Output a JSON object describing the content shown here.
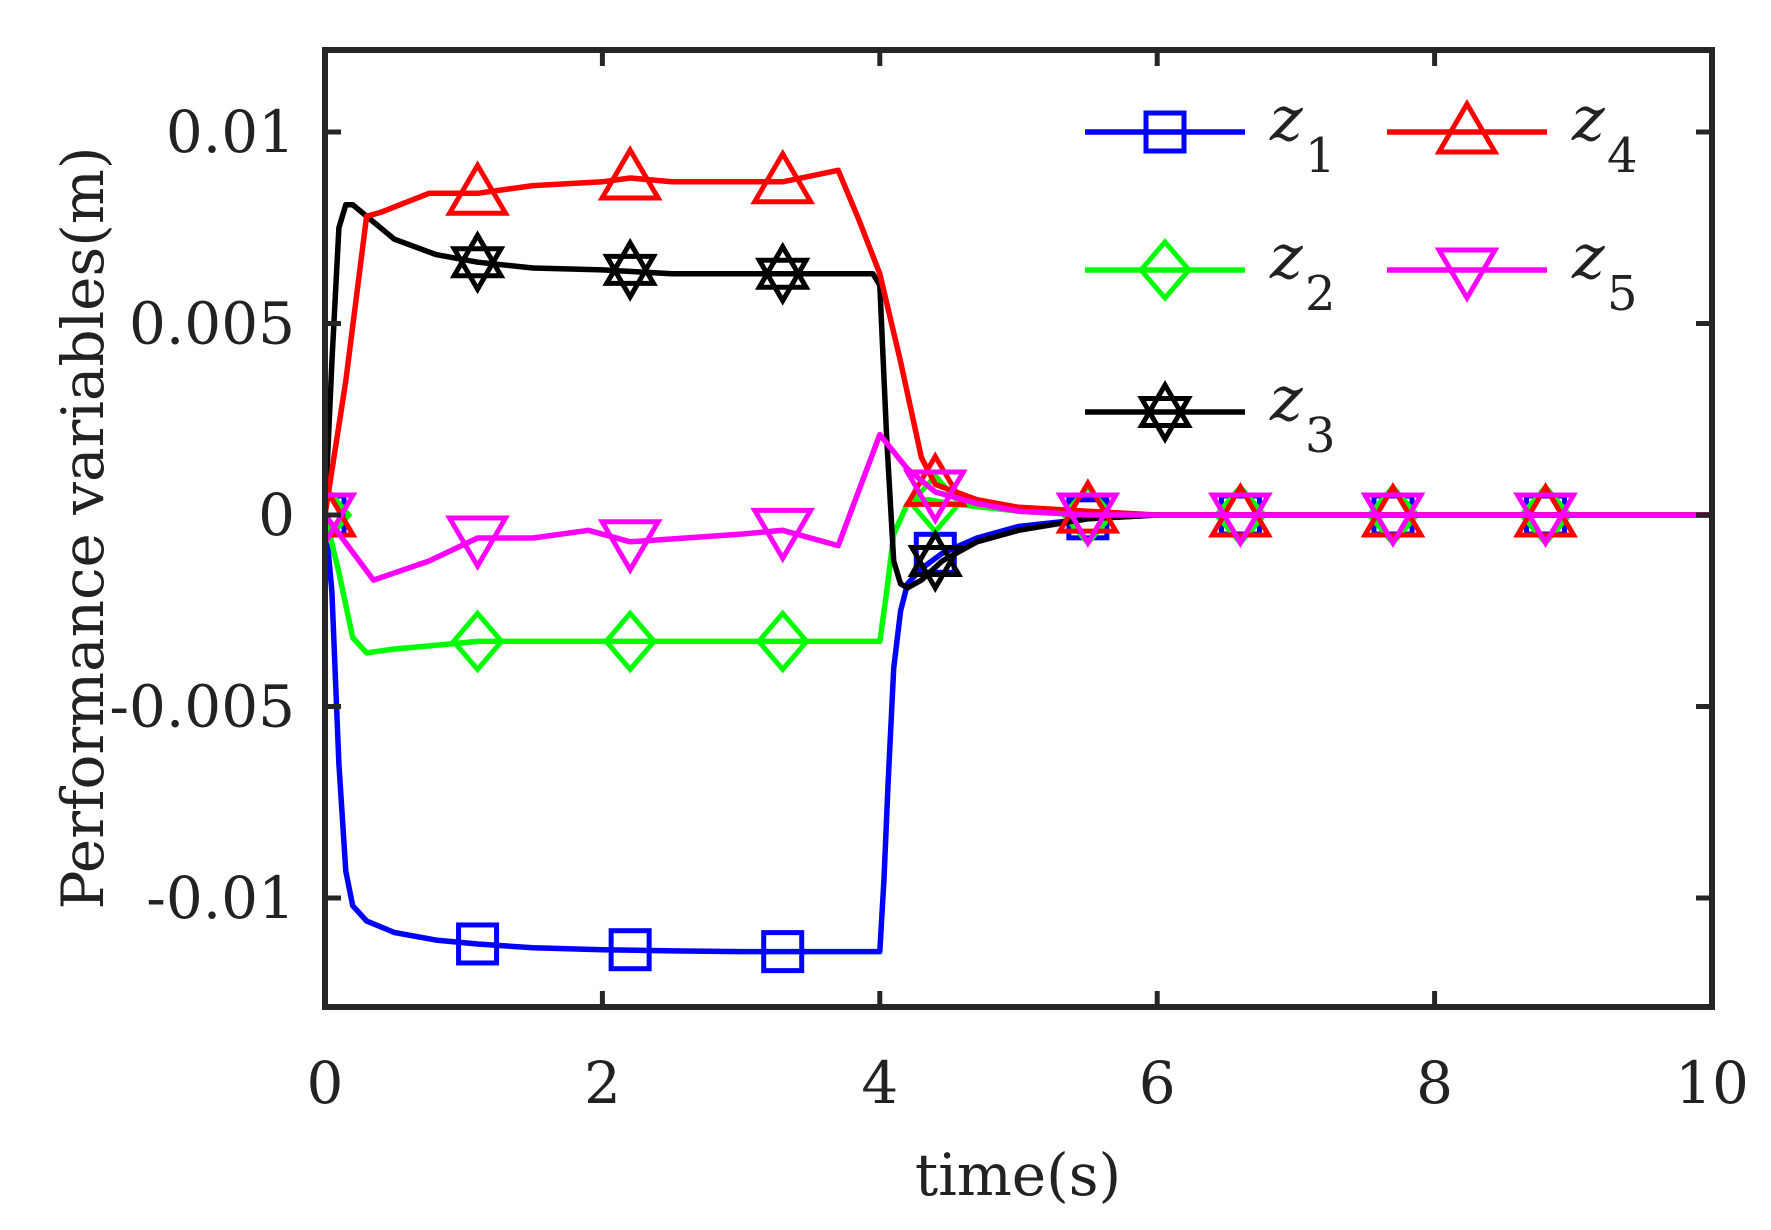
{
  "chart_data": {
    "type": "line",
    "title": "",
    "xlabel": "time(s)",
    "ylabel": "Performance variables(m)",
    "xlim": [
      0,
      10
    ],
    "ylim": [
      -0.013,
      0.012
    ],
    "xticks": [
      0,
      2,
      4,
      6,
      8,
      10
    ],
    "xtick_labels": [
      "0",
      "2",
      "4",
      "6",
      "8",
      "10"
    ],
    "yticks": [
      -0.01,
      -0.005,
      0,
      0.005,
      0.01
    ],
    "ytick_labels": [
      "-0.01",
      "-0.005",
      "0",
      "0.005",
      "0.01"
    ],
    "grid": false,
    "legend_position": "top-right",
    "series": [
      {
        "name": "z1",
        "symbol": "z",
        "subscript": "1",
        "color": "#0000ff",
        "marker": "square",
        "x": [
          0,
          0.05,
          0.1,
          0.15,
          0.2,
          0.3,
          0.5,
          0.8,
          1.1,
          1.5,
          2.0,
          2.5,
          3.0,
          3.5,
          4.0,
          4.03,
          4.06,
          4.1,
          4.15,
          4.2,
          4.3,
          4.45,
          4.7,
          5.0,
          5.5,
          6.0,
          7.0,
          8.0,
          10.0
        ],
        "y": [
          0,
          -0.002,
          -0.0065,
          -0.0093,
          -0.0102,
          -0.0106,
          -0.0109,
          -0.0111,
          -0.0112,
          -0.0113,
          -0.01135,
          -0.01138,
          -0.0114,
          -0.0114,
          -0.0114,
          -0.0095,
          -0.007,
          -0.004,
          -0.0025,
          -0.0018,
          -0.0014,
          -0.001,
          -0.0006,
          -0.0003,
          -0.0001,
          0,
          0,
          0,
          0
        ],
        "marker_x": [
          0,
          1.1,
          2.2,
          3.3,
          4.4,
          5.5,
          6.6,
          7.7,
          8.8
        ],
        "marker_y": [
          0,
          -0.0112,
          -0.01135,
          -0.0114,
          -0.001,
          -0.0001,
          0,
          0,
          0
        ]
      },
      {
        "name": "z2",
        "symbol": "z",
        "subscript": "2",
        "color": "#00ff00",
        "marker": "diamond",
        "x": [
          0,
          0.1,
          0.2,
          0.3,
          0.5,
          0.8,
          1.1,
          1.5,
          2.0,
          2.5,
          3.0,
          3.5,
          4.0,
          4.05,
          4.1,
          4.2,
          4.35,
          4.5,
          5.0,
          5.5,
          6.0,
          8.0,
          10.0
        ],
        "y": [
          0,
          -0.0015,
          -0.0032,
          -0.0036,
          -0.0035,
          -0.0034,
          -0.0033,
          -0.0033,
          -0.0033,
          -0.0033,
          -0.0033,
          -0.0033,
          -0.0033,
          -0.002,
          -0.0005,
          0.0003,
          0.0004,
          0.0003,
          0.0001,
          0,
          0,
          0,
          0
        ],
        "marker_x": [
          0,
          1.1,
          2.2,
          3.3,
          4.4,
          5.5,
          6.6,
          7.7,
          8.8
        ],
        "marker_y": [
          0,
          -0.0033,
          -0.0033,
          -0.0033,
          0.0003,
          0,
          0,
          0,
          0
        ]
      },
      {
        "name": "z3",
        "symbol": "z",
        "subscript": "3",
        "color": "#000000",
        "marker": "hexagram",
        "x": [
          0,
          0.05,
          0.1,
          0.15,
          0.2,
          0.3,
          0.5,
          0.8,
          1.1,
          1.5,
          2.0,
          2.5,
          3.0,
          3.5,
          3.9,
          3.95,
          4.0,
          4.05,
          4.1,
          4.15,
          4.2,
          4.3,
          4.45,
          4.7,
          5.0,
          5.5,
          6.0,
          8.0,
          10.0
        ],
        "y": [
          0,
          0.004,
          0.0075,
          0.0081,
          0.0081,
          0.0078,
          0.0072,
          0.0068,
          0.0066,
          0.00645,
          0.0064,
          0.0063,
          0.0063,
          0.0063,
          0.0063,
          0.0063,
          0.006,
          0.002,
          -0.0012,
          -0.0018,
          -0.0019,
          -0.0017,
          -0.0012,
          -0.0007,
          -0.0004,
          -0.0001,
          0,
          0,
          0
        ],
        "marker_x": [
          1.1,
          2.2,
          3.3,
          4.4
        ],
        "marker_y": [
          0.0066,
          0.0064,
          0.0063,
          -0.0012
        ]
      },
      {
        "name": "z4",
        "symbol": "z",
        "subscript": "4",
        "color": "#ff0000",
        "marker": "triangle-up",
        "x": [
          0,
          0.15,
          0.3,
          0.4,
          0.75,
          1.1,
          1.5,
          2.0,
          2.2,
          2.5,
          3.0,
          3.3,
          3.7,
          3.85,
          4.0,
          4.15,
          4.3,
          4.4,
          4.7,
          5.0,
          5.5,
          6.0,
          8.0,
          10.0
        ],
        "y": [
          0,
          0.0035,
          0.0078,
          0.0079,
          0.0084,
          0.0084,
          0.0086,
          0.0087,
          0.0088,
          0.0087,
          0.0087,
          0.0087,
          0.009,
          0.0077,
          0.0063,
          0.004,
          0.0015,
          0.0008,
          0.0004,
          0.0002,
          0.0001,
          0,
          0,
          0
        ],
        "marker_x": [
          0,
          1.1,
          2.2,
          3.3,
          4.4,
          5.5,
          6.6,
          7.7,
          8.8
        ],
        "marker_y": [
          0,
          0.0084,
          0.0088,
          0.0087,
          0.0008,
          0.0001,
          0,
          0,
          0
        ]
      },
      {
        "name": "z5",
        "symbol": "z",
        "subscript": "5",
        "color": "#ff00ff",
        "marker": "triangle-down",
        "x": [
          0,
          0.35,
          0.75,
          1.1,
          1.5,
          1.9,
          2.2,
          2.6,
          3.0,
          3.3,
          3.7,
          4.0,
          4.2,
          4.4,
          4.7,
          5.0,
          5.5,
          6.0,
          8.0,
          10.0
        ],
        "y": [
          0,
          -0.0017,
          -0.0012,
          -0.0006,
          -0.0006,
          -0.0004,
          -0.0007,
          -0.0006,
          -0.0005,
          -0.0004,
          -0.0008,
          0.0021,
          0.0012,
          0.0006,
          0.0003,
          0.0001,
          0,
          0,
          0,
          0
        ],
        "marker_x": [
          0,
          1.1,
          2.2,
          3.3,
          4.4,
          5.5,
          6.6,
          7.7,
          8.8
        ],
        "marker_y": [
          0,
          -0.0006,
          -0.0007,
          -0.0004,
          0.0006,
          0,
          0,
          0,
          0
        ]
      }
    ]
  }
}
